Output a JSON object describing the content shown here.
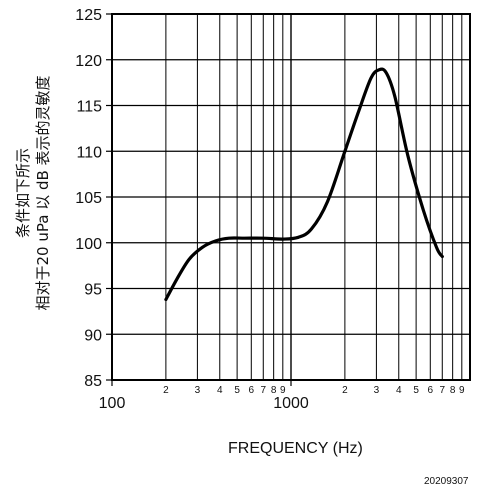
{
  "chart_data": {
    "type": "line",
    "title": "",
    "xlabel": "FREQUENCY (Hz)",
    "ylabel_lines": [
      "条件如下所示",
      "相对于20 uPa 以 dB 表示的灵敏度"
    ],
    "x_scale": "log",
    "xlim": [
      100,
      10000
    ],
    "ylim": [
      85,
      125
    ],
    "grid": true,
    "x_major_ticks": [
      {
        "value": 100,
        "label": "100"
      },
      {
        "value": 1000,
        "label": "1000"
      }
    ],
    "x_minor_ticks": [
      {
        "value": 200,
        "label": "2"
      },
      {
        "value": 300,
        "label": "3"
      },
      {
        "value": 400,
        "label": "4"
      },
      {
        "value": 500,
        "label": "5"
      },
      {
        "value": 600,
        "label": "6"
      },
      {
        "value": 700,
        "label": "7"
      },
      {
        "value": 800,
        "label": "8"
      },
      {
        "value": 900,
        "label": "9"
      },
      {
        "value": 2000,
        "label": "2"
      },
      {
        "value": 3000,
        "label": "3"
      },
      {
        "value": 4000,
        "label": "4"
      },
      {
        "value": 5000,
        "label": "5"
      },
      {
        "value": 6000,
        "label": "6"
      },
      {
        "value": 7000,
        "label": "7"
      },
      {
        "value": 8000,
        "label": "8"
      },
      {
        "value": 9000,
        "label": "9"
      }
    ],
    "y_ticks": [
      {
        "value": 85,
        "label": "85"
      },
      {
        "value": 90,
        "label": "90"
      },
      {
        "value": 95,
        "label": "95"
      },
      {
        "value": 100,
        "label": "100"
      },
      {
        "value": 105,
        "label": "105"
      },
      {
        "value": 110,
        "label": "110"
      },
      {
        "value": 115,
        "label": "115"
      },
      {
        "value": 120,
        "label": "120"
      },
      {
        "value": 125,
        "label": "125"
      }
    ],
    "series": [
      {
        "x": [
          200,
          230,
          270,
          320,
          380,
          450,
          550,
          700,
          900,
          1100,
          1300,
          1600,
          2000,
          2400,
          2800,
          3100,
          3400,
          3800,
          4500,
          5500,
          6500,
          7000
        ],
        "y": [
          93.8,
          96.0,
          98.2,
          99.5,
          100.2,
          100.5,
          100.5,
          100.5,
          100.4,
          100.6,
          101.5,
          104.5,
          110.0,
          114.5,
          118.0,
          118.9,
          118.6,
          116.0,
          109.5,
          103.5,
          99.5,
          98.5
        ]
      }
    ],
    "colors": {
      "line": "#000000",
      "grid": "#000000",
      "axis": "#000000"
    }
  },
  "footer": {
    "code": "20209307"
  }
}
